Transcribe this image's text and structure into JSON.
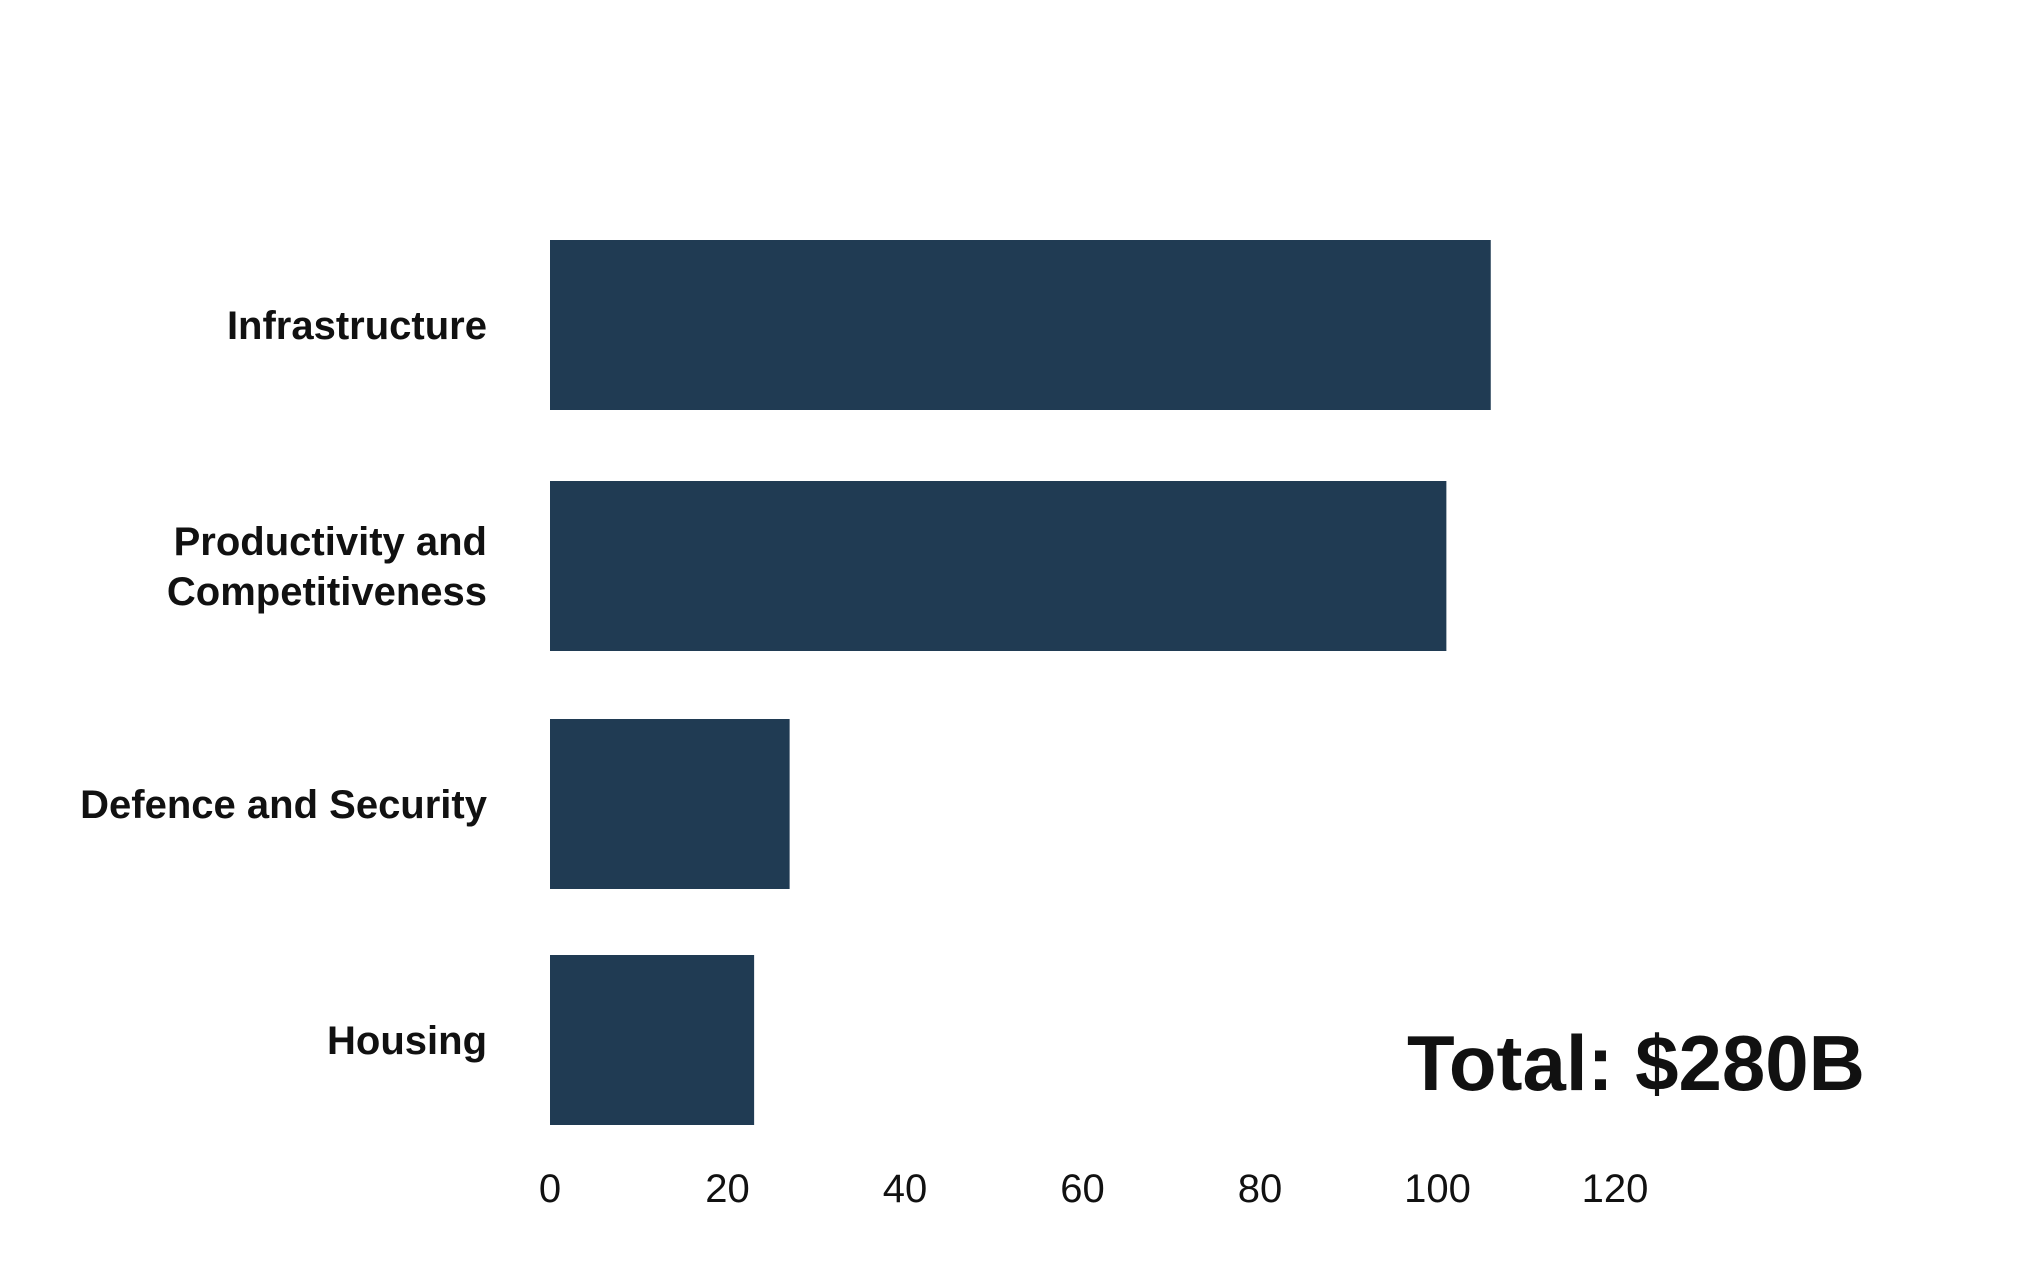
{
  "colors": {
    "bar": "#203b53",
    "text": "#111111",
    "background": "#ffffff"
  },
  "chart_data": {
    "type": "bar",
    "orientation": "horizontal",
    "title": "",
    "xlabel": "",
    "ylabel": "",
    "categories": [
      [
        "Infrastructure"
      ],
      [
        "Productivity and",
        "Competitiveness"
      ],
      [
        "Defence and Security"
      ],
      [
        "Housing"
      ]
    ],
    "values": [
      106,
      101,
      27,
      23
    ],
    "xlim": [
      0,
      120
    ],
    "xticks": [
      "0",
      "20",
      "40",
      "60",
      "80",
      "100",
      "120"
    ],
    "grid": false,
    "legend": null
  },
  "annotation": {
    "total_text": "Total: $280B"
  }
}
